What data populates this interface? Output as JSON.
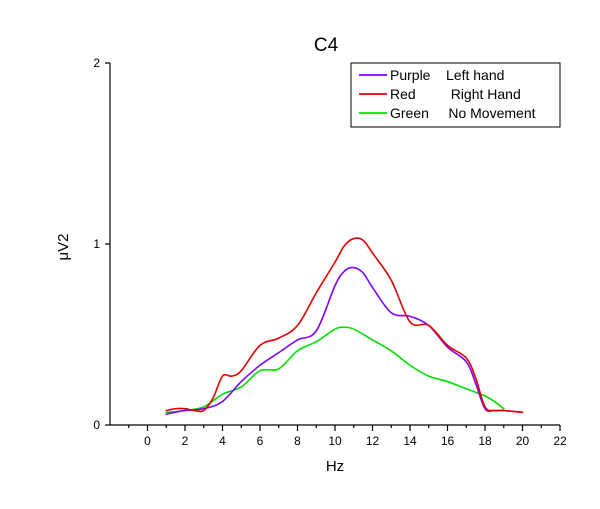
{
  "chart_data": {
    "type": "line",
    "title": "C4",
    "xlabel": "Hz",
    "ylabel": "μV2",
    "xlim": [
      -2,
      22
    ],
    "ylim": [
      0,
      2
    ],
    "x_ticks": [
      0,
      2,
      4,
      6,
      8,
      10,
      12,
      14,
      16,
      18,
      20,
      22
    ],
    "y_ticks": [
      0,
      1,
      2
    ],
    "grid": false,
    "legend_position": "top-right",
    "series": [
      {
        "name": "Purple    Left hand",
        "color": "#8000ff",
        "x": [
          1,
          2,
          3,
          4,
          5,
          6,
          7,
          8,
          9,
          10,
          10.5,
          11,
          11.5,
          12,
          13,
          14,
          15,
          16,
          17,
          17.5,
          18,
          18.5,
          19,
          20
        ],
        "y": [
          0.06,
          0.08,
          0.09,
          0.13,
          0.24,
          0.33,
          0.4,
          0.47,
          0.52,
          0.77,
          0.85,
          0.87,
          0.84,
          0.76,
          0.62,
          0.6,
          0.55,
          0.43,
          0.35,
          0.23,
          0.09,
          0.08,
          0.08,
          0.07
        ]
      },
      {
        "name": "Red         Right Hand",
        "color": "#e00000",
        "x": [
          1,
          1.5,
          2,
          2.5,
          3,
          3.5,
          4,
          4.5,
          5,
          6,
          7,
          8,
          9,
          10,
          10.5,
          11,
          11.5,
          12,
          13,
          14,
          15,
          16,
          17,
          17.5,
          18,
          18.5,
          19,
          20
        ],
        "y": [
          0.08,
          0.09,
          0.09,
          0.08,
          0.08,
          0.15,
          0.27,
          0.27,
          0.3,
          0.44,
          0.48,
          0.55,
          0.73,
          0.9,
          0.99,
          1.03,
          1.02,
          0.95,
          0.8,
          0.57,
          0.55,
          0.44,
          0.37,
          0.26,
          0.1,
          0.08,
          0.08,
          0.07
        ]
      },
      {
        "name": "Green     No Movement",
        "color": "#00e000",
        "x": [
          1,
          2,
          3,
          4,
          5,
          6,
          7,
          8,
          9,
          10,
          10.5,
          11,
          12,
          13,
          14,
          15,
          16,
          17,
          18,
          18.5,
          19
        ],
        "y": [
          0.07,
          0.08,
          0.1,
          0.17,
          0.21,
          0.3,
          0.31,
          0.41,
          0.46,
          0.53,
          0.54,
          0.53,
          0.47,
          0.41,
          0.33,
          0.27,
          0.24,
          0.2,
          0.16,
          0.13,
          0.09
        ]
      }
    ]
  }
}
